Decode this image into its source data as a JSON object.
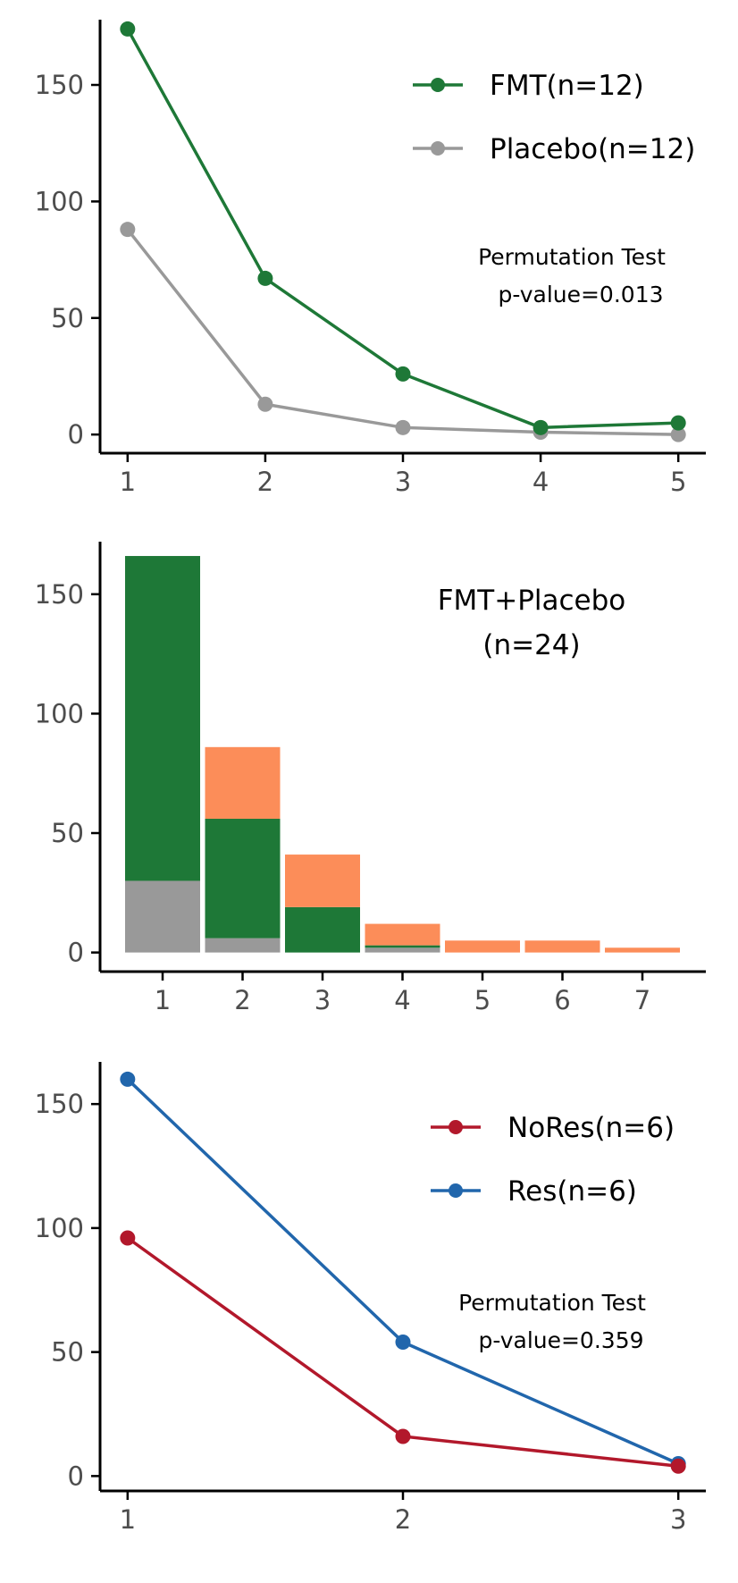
{
  "colors": {
    "fmt": "#1E7837",
    "placebo": "#999999",
    "extra": "#FC8D59",
    "nores": "#B2182B",
    "res": "#2166AC",
    "axis": "#000000"
  },
  "chart_data": [
    {
      "type": "line",
      "x": [
        1,
        2,
        3,
        4,
        5
      ],
      "ylim": [
        -8,
        178
      ],
      "y_ticks": [
        0,
        50,
        100,
        150
      ],
      "x_ticks": [
        1,
        2,
        3,
        4,
        5
      ],
      "series": [
        {
          "name": "FMT(n=12)",
          "color_key": "fmt",
          "values": [
            174,
            67,
            26,
            3,
            5
          ]
        },
        {
          "name": "Placebo(n=12)",
          "color_key": "placebo",
          "values": [
            88,
            13,
            3,
            1,
            0
          ]
        }
      ],
      "legend_position": "top-right",
      "annotation": [
        "Permutation Test",
        "p-value=0.013"
      ],
      "grid": false
    },
    {
      "type": "bar",
      "categories": [
        "1",
        "2",
        "3",
        "4",
        "5",
        "6",
        "7"
      ],
      "ylim": [
        -8,
        172
      ],
      "y_ticks": [
        0,
        50,
        100,
        150
      ],
      "stacked": true,
      "series": [
        {
          "color_key": "placebo",
          "values": [
            30,
            6,
            0,
            2,
            0,
            0,
            0
          ]
        },
        {
          "color_key": "fmt",
          "values": [
            136,
            50,
            19,
            1,
            0,
            0,
            0
          ]
        },
        {
          "color_key": "extra",
          "values": [
            0,
            30,
            22,
            9,
            5,
            5,
            2
          ]
        }
      ],
      "annotation": [
        "FMT+Placebo",
        "(n=24)"
      ],
      "grid": false
    },
    {
      "type": "line",
      "x": [
        1,
        2,
        3
      ],
      "ylim": [
        -6,
        167
      ],
      "y_ticks": [
        0,
        50,
        100,
        150
      ],
      "x_ticks": [
        1,
        2,
        3
      ],
      "series": [
        {
          "name": "NoRes(n=6)",
          "color_key": "nores",
          "values": [
            96,
            16,
            4
          ]
        },
        {
          "name": "Res(n=6)",
          "color_key": "res",
          "values": [
            160,
            54,
            5
          ]
        }
      ],
      "legend_position": "top-right",
      "annotation": [
        "Permutation Test",
        "p-value=0.359"
      ],
      "grid": false
    }
  ]
}
